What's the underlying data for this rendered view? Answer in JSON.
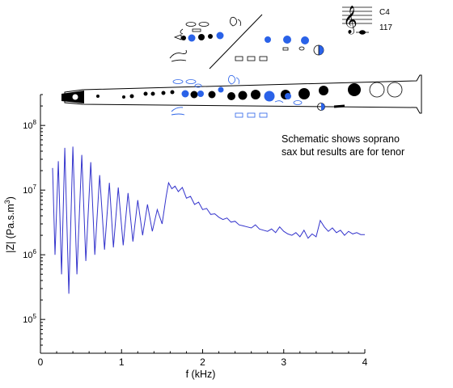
{
  "chart_data": {
    "type": "line",
    "title": "",
    "xlabel": "f (kHz)",
    "ylabel_main": "|Z| (Pa.s.m",
    "ylabel_sup": "3",
    "ylabel_end": ")",
    "xlim": [
      0,
      4
    ],
    "ylim": [
      30000,
      300000000
    ],
    "yscale": "log",
    "x_ticks": [
      0,
      1,
      2,
      3,
      4
    ],
    "x_tick_labels": [
      "0",
      "1",
      "2",
      "3",
      "4"
    ],
    "y_ticks": [
      100000,
      1000000,
      10000000,
      100000000
    ],
    "y_tick_base": "10",
    "y_tick_exponents": [
      "5",
      "6",
      "7",
      "8"
    ],
    "series": [
      {
        "color": "#3333cc",
        "x": [
          0.15,
          0.18,
          0.22,
          0.26,
          0.3,
          0.35,
          0.4,
          0.45,
          0.51,
          0.56,
          0.62,
          0.67,
          0.73,
          0.79,
          0.85,
          0.9,
          0.96,
          1.02,
          1.08,
          1.14,
          1.2,
          1.26,
          1.32,
          1.38,
          1.44,
          1.5,
          1.55,
          1.58,
          1.62,
          1.66,
          1.7,
          1.75,
          1.8,
          1.85,
          1.9,
          1.95,
          2.0,
          2.05,
          2.1,
          2.15,
          2.2,
          2.25,
          2.3,
          2.35,
          2.4,
          2.45,
          2.5,
          2.55,
          2.6,
          2.65,
          2.7,
          2.75,
          2.8,
          2.85,
          2.9,
          2.95,
          3.0,
          3.05,
          3.1,
          3.15,
          3.2,
          3.25,
          3.3,
          3.35,
          3.4,
          3.45,
          3.5,
          3.55,
          3.6,
          3.65,
          3.7,
          3.75,
          3.8,
          3.85,
          3.9,
          3.95,
          4.0
        ],
        "values": [
          22000000,
          1000000,
          28000000,
          500000,
          45000000,
          250000,
          47000000,
          500000,
          35000000,
          800000,
          27000000,
          1000000,
          17000000,
          1200000,
          13000000,
          1300000,
          11000000,
          1400000,
          9000000,
          1600000,
          7000000,
          2000000,
          6000000,
          2300000,
          5000000,
          3000000,
          8000000,
          13000000,
          10500000,
          11500000,
          9500000,
          11000000,
          7500000,
          8000000,
          6000000,
          6500000,
          5000000,
          5200000,
          4200000,
          4300000,
          3800000,
          3500000,
          3700000,
          3200000,
          3300000,
          2900000,
          2800000,
          2700000,
          2600000,
          2900000,
          2500000,
          2400000,
          2300000,
          2500000,
          2200000,
          2700000,
          2300000,
          2100000,
          2000000,
          2200000,
          1900000,
          2400000,
          1800000,
          2100000,
          1900000,
          3400000,
          2700000,
          2300000,
          2600000,
          2200000,
          2400000,
          2000000,
          2300000,
          2100000,
          2200000,
          2050000,
          2050000
        ]
      }
    ]
  },
  "annotation": {
    "line1": "Schematic shows soprano",
    "line2": "sax but results are for tenor"
  },
  "notation": {
    "note_name": "C4",
    "number": "117"
  },
  "colors": {
    "curve": "#3333cc",
    "key_blue": "#2a62e8",
    "key_black": "#000000",
    "axis": "#000000"
  }
}
